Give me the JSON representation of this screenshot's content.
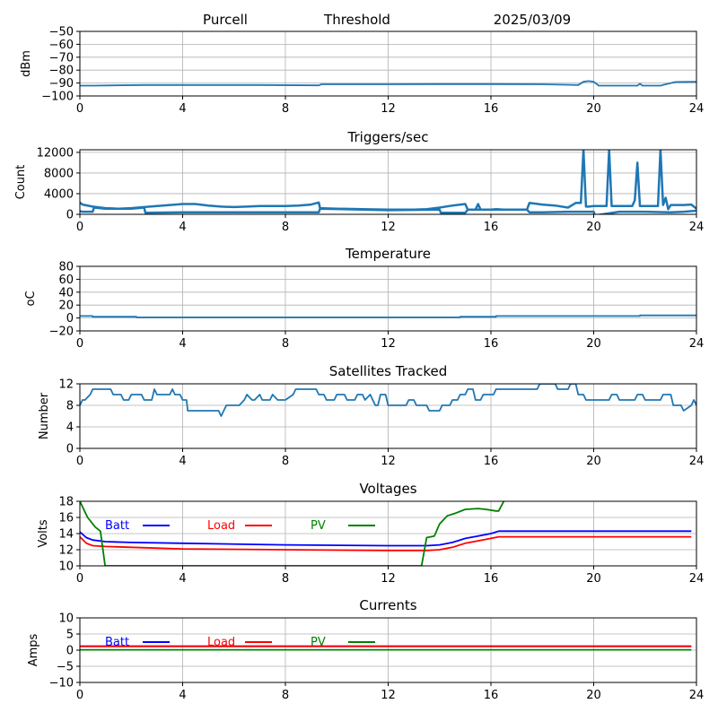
{
  "header": {
    "station": "Purcell",
    "mode": "Threshold",
    "date": "2025/03/09"
  },
  "chart_data": [
    {
      "type": "line",
      "title": "",
      "xlabel": "",
      "ylabel": "dBm",
      "xlim": [
        0,
        24
      ],
      "ylim": [
        -100,
        -50
      ],
      "xticks": [
        0,
        4,
        8,
        12,
        16,
        20,
        24
      ],
      "yticks": [
        -100,
        -90,
        -80,
        -70,
        -60,
        -50
      ],
      "ytick_labels": [
        "−100",
        "−90",
        "−80",
        "−70",
        "−60",
        "−50"
      ],
      "grid": true,
      "series": [
        {
          "name": "threshold",
          "color": "#1f77b4",
          "x": [
            0,
            0.5,
            2.5,
            5,
            7,
            9.3,
            9.4,
            12,
            14,
            16,
            18,
            19.4,
            19.6,
            19.8,
            20.0,
            20.2,
            21.0,
            21.7,
            21.8,
            21.9,
            22.6,
            22.8,
            23.0,
            23.2,
            24
          ],
          "y": [
            -92,
            -92,
            -91.5,
            -91.5,
            -91.5,
            -91.8,
            -91,
            -91,
            -90.8,
            -90.8,
            -91,
            -91.5,
            -89,
            -88.5,
            -89,
            -92,
            -92,
            -92,
            -90.5,
            -92,
            -92,
            -91,
            -90,
            -89.2,
            -89
          ]
        }
      ]
    },
    {
      "type": "line",
      "title": "Triggers/sec",
      "xlabel": "",
      "ylabel": "Count",
      "xlim": [
        0,
        24
      ],
      "ylim": [
        0,
        12500
      ],
      "xticks": [
        0,
        4,
        8,
        12,
        16,
        20,
        24
      ],
      "yticks": [
        0,
        4000,
        8000,
        12000
      ],
      "grid": true,
      "series": [
        {
          "name": "triggers_upper",
          "color": "#1f77b4",
          "x": [
            0,
            0.1,
            0.5,
            1,
            1.5,
            2,
            2.5,
            3,
            3.5,
            4,
            4.5,
            5,
            5.5,
            6,
            6.5,
            7,
            7.5,
            8,
            8.5,
            9,
            9.3,
            9.35,
            10,
            11,
            12,
            12.5,
            13,
            13.5,
            14,
            14.5,
            15,
            15.1,
            15.4,
            15.5,
            15.6,
            15.7,
            16,
            16.2,
            16.5,
            17,
            17.4,
            17.5,
            18,
            18.5,
            19,
            19.3,
            19.5,
            19.6,
            19.7,
            19.8,
            20,
            20.5,
            20.6,
            20.7,
            21,
            21.5,
            21.6,
            21.7,
            21.8,
            22,
            22.5,
            22.6,
            22.7,
            22.8,
            22.9,
            23,
            23.5,
            23.8,
            24
          ],
          "y": [
            2300,
            1900,
            1500,
            1200,
            1100,
            1200,
            1400,
            1600,
            1800,
            2000,
            2000,
            1700,
            1500,
            1400,
            1500,
            1600,
            1600,
            1600,
            1700,
            1900,
            2300,
            1200,
            1100,
            1000,
            900,
            900,
            900,
            1000,
            1300,
            1700,
            2000,
            900,
            900,
            2000,
            900,
            900,
            900,
            1000,
            900,
            900,
            900,
            2200,
            1900,
            1700,
            1300,
            2200,
            2200,
            12500,
            1500,
            1500,
            1600,
            1600,
            12500,
            1600,
            1600,
            1600,
            2700,
            10000,
            1600,
            1600,
            1600,
            12500,
            1800,
            3200,
            1000,
            1800,
            1800,
            1900,
            1100
          ]
        },
        {
          "name": "triggers_lower",
          "color": "#1f77b4",
          "x": [
            0,
            0.1,
            0.5,
            0.55,
            1,
            2,
            2.5,
            2.55,
            4,
            5,
            6,
            7,
            8,
            9,
            9.3,
            9.35,
            12,
            14,
            14.05,
            15,
            15.1,
            16,
            17.4,
            17.5,
            18,
            19,
            19.5,
            20,
            20.05,
            21,
            22,
            23,
            23.5,
            24
          ],
          "y": [
            600,
            500,
            500,
            1300,
            1100,
            1100,
            1300,
            300,
            400,
            400,
            400,
            400,
            400,
            400,
            400,
            1100,
            800,
            900,
            300,
            300,
            900,
            900,
            900,
            400,
            400,
            500,
            500,
            500,
            -200,
            500,
            500,
            400,
            500,
            700
          ]
        }
      ]
    },
    {
      "type": "line",
      "title": "Temperature",
      "xlabel": "",
      "ylabel": "°C",
      "ylabel_display": "oC",
      "xlim": [
        0,
        24
      ],
      "ylim": [
        -20,
        80
      ],
      "xticks": [
        0,
        4,
        8,
        12,
        16,
        20,
        24
      ],
      "yticks": [
        -20,
        0,
        20,
        40,
        60,
        80
      ],
      "ytick_labels": [
        "−20",
        "0",
        "20",
        "40",
        "60",
        "80"
      ],
      "grid": true,
      "series": [
        {
          "name": "temperature",
          "color": "#1f77b4",
          "x": [
            0,
            0.5,
            0.5,
            2.2,
            2.2,
            14.8,
            14.8,
            16.2,
            16.2,
            21.8,
            21.8,
            24
          ],
          "y": [
            3,
            3,
            2,
            2,
            1,
            1,
            2,
            2,
            3,
            3,
            4,
            4
          ]
        }
      ]
    },
    {
      "type": "line",
      "title": "Satellites Tracked",
      "xlabel": "",
      "ylabel": "Number",
      "xlim": [
        0,
        24
      ],
      "ylim": [
        0,
        12
      ],
      "xticks": [
        0,
        4,
        8,
        12,
        16,
        20,
        24
      ],
      "yticks": [
        0,
        4,
        8,
        12
      ],
      "grid": true,
      "series": [
        {
          "name": "satellites",
          "color": "#1f77b4",
          "x": [
            0,
            0.1,
            0.2,
            0.4,
            0.5,
            1.2,
            1.3,
            1.6,
            1.7,
            1.9,
            2.0,
            2.4,
            2.5,
            2.8,
            2.85,
            2.9,
            3.0,
            3.1,
            3.5,
            3.6,
            3.7,
            3.9,
            4.0,
            4.15,
            4.2,
            5.4,
            5.5,
            5.6,
            5.7,
            6.1,
            6.2,
            6.4,
            6.5,
            6.7,
            6.8,
            7.0,
            7.1,
            7.4,
            7.5,
            7.7,
            8.0,
            8.3,
            8.4,
            9.2,
            9.3,
            9.5,
            9.6,
            9.9,
            10.0,
            10.3,
            10.4,
            10.7,
            10.8,
            11.0,
            11.1,
            11.3,
            11.5,
            11.6,
            11.7,
            11.9,
            12.0,
            12.7,
            12.8,
            13.0,
            13.1,
            13.5,
            13.6,
            14.0,
            14.1,
            14.4,
            14.5,
            14.7,
            14.8,
            15.0,
            15.1,
            15.3,
            15.4,
            15.6,
            15.7,
            16.1,
            16.2,
            16.5,
            16.6,
            17.8,
            17.9,
            18.5,
            18.6,
            19.0,
            19.1,
            19.3,
            19.4,
            19.6,
            19.7,
            20.6,
            20.7,
            20.9,
            21.0,
            21.6,
            21.7,
            21.9,
            22.0,
            22.6,
            22.7,
            23.0,
            23.1,
            23.4,
            23.5,
            23.8,
            23.9,
            24
          ],
          "y": [
            8,
            9,
            9,
            10,
            11,
            11,
            10,
            10,
            9,
            9,
            10,
            10,
            9,
            9,
            10,
            11,
            10,
            10,
            10,
            11,
            10,
            10,
            9,
            9,
            7,
            7,
            6,
            7,
            8,
            8,
            8,
            9,
            10,
            9,
            9,
            10,
            9,
            9,
            10,
            9,
            9,
            10,
            11,
            11,
            10,
            10,
            9,
            9,
            10,
            10,
            9,
            9,
            10,
            10,
            9,
            10,
            8,
            8,
            10,
            10,
            8,
            8,
            9,
            9,
            8,
            8,
            7,
            7,
            8,
            8,
            9,
            9,
            10,
            10,
            11,
            11,
            9,
            9,
            10,
            10,
            11,
            11,
            11,
            11,
            12,
            12,
            11,
            11,
            12,
            12,
            10,
            10,
            9,
            9,
            10,
            10,
            9,
            9,
            10,
            10,
            9,
            9,
            10,
            10,
            8,
            8,
            7,
            8,
            9,
            8
          ]
        }
      ]
    },
    {
      "type": "line",
      "title": "Voltages",
      "xlabel": "",
      "ylabel": "Volts",
      "xlim": [
        0,
        24
      ],
      "ylim": [
        10,
        18
      ],
      "xticks": [
        0,
        4,
        8,
        12,
        16,
        20,
        24
      ],
      "yticks": [
        10,
        12,
        14,
        16,
        18
      ],
      "grid": true,
      "legend": "inline-top-left",
      "series": [
        {
          "name": "Batt",
          "color": "#0000ff",
          "x": [
            0,
            0.25,
            0.5,
            1,
            2,
            4,
            8,
            12,
            13.5,
            14,
            14.5,
            15,
            15.5,
            16,
            16.3,
            17,
            20,
            23.8
          ],
          "y": [
            14.2,
            13.5,
            13.2,
            13.0,
            12.9,
            12.8,
            12.6,
            12.5,
            12.5,
            12.6,
            12.9,
            13.4,
            13.7,
            14.0,
            14.3,
            14.3,
            14.3,
            14.3
          ]
        },
        {
          "name": "Load",
          "color": "#ff0000",
          "x": [
            0,
            0.25,
            0.5,
            1,
            2,
            4,
            8,
            12,
            13.5,
            14,
            14.5,
            15,
            15.5,
            16,
            16.3,
            17,
            20,
            23.8
          ],
          "y": [
            13.6,
            12.8,
            12.5,
            12.4,
            12.3,
            12.1,
            12.0,
            11.9,
            11.9,
            12.0,
            12.3,
            12.8,
            13.1,
            13.4,
            13.6,
            13.6,
            13.6,
            13.6
          ]
        },
        {
          "name": "PV",
          "color": "#008000",
          "x": [
            0,
            0.3,
            0.6,
            0.8,
            0.98,
            13.3,
            13.5,
            13.8,
            14.0,
            14.3,
            14.6,
            15.0,
            15.5,
            15.8,
            16.2,
            16.3,
            16.5
          ],
          "y": [
            18.0,
            16.0,
            14.8,
            14.3,
            10.0,
            10.0,
            13.5,
            13.7,
            15.2,
            16.2,
            16.5,
            17.0,
            17.1,
            17.0,
            16.8,
            16.8,
            18.0
          ]
        }
      ]
    },
    {
      "type": "line",
      "title": "Currents",
      "xlabel": "",
      "ylabel": "Amps",
      "xlim": [
        0,
        24
      ],
      "ylim": [
        -10,
        10
      ],
      "xticks": [
        0,
        4,
        8,
        12,
        16,
        20,
        24
      ],
      "yticks": [
        -10,
        -5,
        0,
        5,
        10
      ],
      "ytick_labels": [
        "−10",
        "−5",
        "0",
        "5",
        "10"
      ],
      "grid": true,
      "legend": "inline-top-left",
      "series": [
        {
          "name": "Batt",
          "color": "#0000ff",
          "x": [
            0,
            23.8
          ],
          "y": [
            1.2,
            1.2
          ]
        },
        {
          "name": "Load",
          "color": "#ff0000",
          "x": [
            0,
            23.8
          ],
          "y": [
            1.2,
            1.2
          ]
        },
        {
          "name": "PV",
          "color": "#008000",
          "x": [
            0,
            23.8
          ],
          "y": [
            0.1,
            0.1
          ]
        }
      ]
    }
  ]
}
